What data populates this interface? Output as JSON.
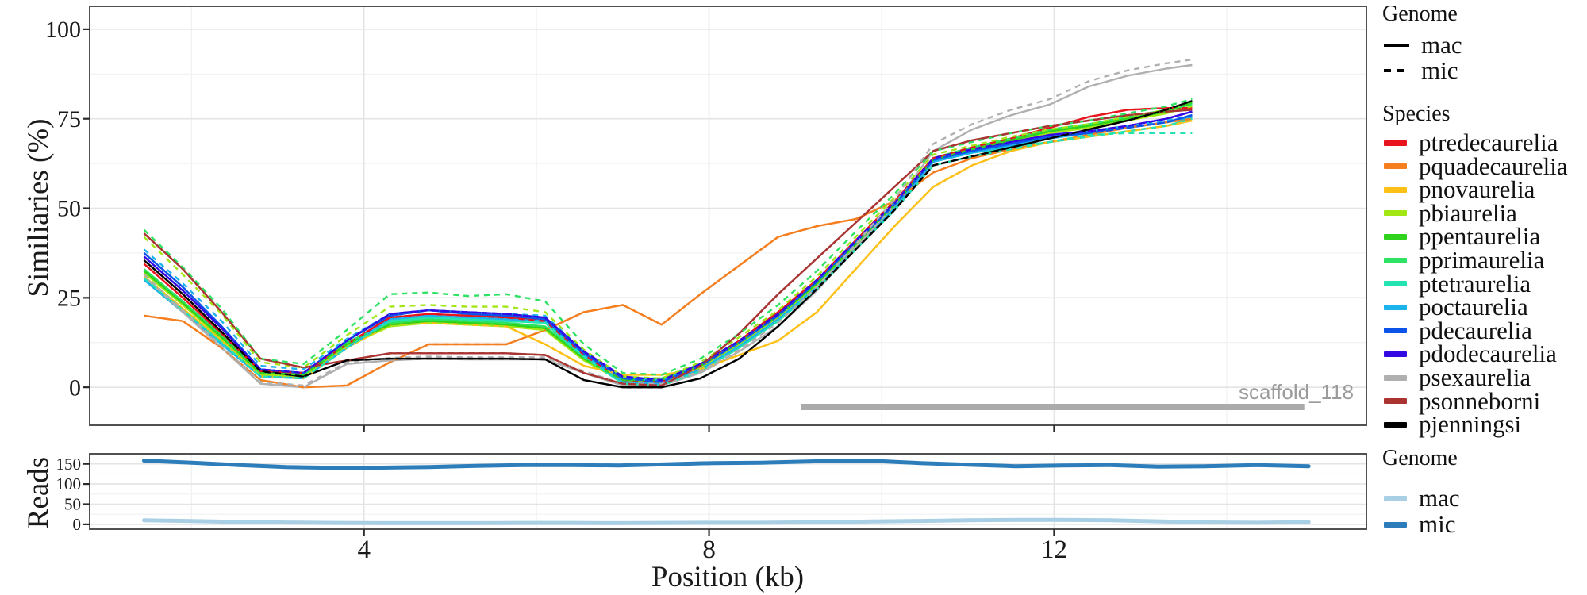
{
  "axes": {
    "similarity_title": "Similiaries (%)",
    "reads_title": "Reads",
    "x_title": "Position (kb)"
  },
  "annotation": {
    "label": "scaffold_118",
    "x_start": 9.07,
    "x_end": 14.9,
    "bar_color": "#ababab",
    "label_color": "#9b9b9b"
  },
  "legends": {
    "genome_top": {
      "title": "Genome",
      "items": [
        {
          "label": "mac",
          "line": "solid"
        },
        {
          "label": "mic",
          "line": "dashed"
        }
      ]
    },
    "species": {
      "title": "Species",
      "items": [
        {
          "label": "ptredecaurelia",
          "color": "#e8141e"
        },
        {
          "label": "pquadecaurelia",
          "color": "#f57e1f"
        },
        {
          "label": "pnovaurelia",
          "color": "#fdc016"
        },
        {
          "label": "pbiaurelia",
          "color": "#a2e714"
        },
        {
          "label": "ppentaurelia",
          "color": "#2fd31d"
        },
        {
          "label": "pprimaurelia",
          "color": "#2ee264"
        },
        {
          "label": "ptetraurelia",
          "color": "#24e3b2"
        },
        {
          "label": "poctaurelia",
          "color": "#1bb3eb"
        },
        {
          "label": "pdecaurelia",
          "color": "#0c53e9"
        },
        {
          "label": "pdodecaurelia",
          "color": "#3408e3"
        },
        {
          "label": "psexaurelia",
          "color": "#b0b0b0"
        },
        {
          "label": "psonneborni",
          "color": "#a93432"
        },
        {
          "label": "pjenningsi",
          "color": "#000000"
        }
      ]
    },
    "genome_bottom": {
      "title": "Genome",
      "items": [
        {
          "label": "mac",
          "color": "#a9cfe4"
        },
        {
          "label": "mic",
          "color": "#2d7dbb"
        }
      ]
    }
  },
  "chart_data": [
    {
      "type": "line",
      "title": "",
      "xlabel": "Position (kb)",
      "ylabel": "Similiaries (%)",
      "xlim": [
        0.82,
        15.62
      ],
      "ylim": [
        -10.6,
        106.4
      ],
      "grid": "on",
      "legend_position": "right",
      "xticks": [
        {
          "v": 4,
          "label": "4"
        },
        {
          "v": 8,
          "label": "8"
        },
        {
          "v": 12,
          "label": "12"
        }
      ],
      "xminor": [
        2,
        6,
        10,
        14
      ],
      "yticks": [
        {
          "v": 0,
          "label": "0"
        },
        {
          "v": 25,
          "label": "25"
        },
        {
          "v": 50,
          "label": "50"
        },
        {
          "v": 75,
          "label": "75"
        },
        {
          "v": 100,
          "label": "100"
        }
      ],
      "yminor": [
        12.5,
        37.5,
        62.5,
        87.5
      ],
      "x": [
        1.45,
        1.9,
        2.35,
        2.8,
        3.3,
        3.8,
        4.3,
        4.75,
        5.2,
        5.65,
        6.1,
        6.55,
        7.0,
        7.45,
        7.9,
        8.35,
        8.8,
        9.25,
        9.7,
        10.15,
        10.6,
        11.05,
        11.5,
        11.95,
        12.4,
        12.85,
        13.3,
        13.6
      ],
      "series": [
        {
          "species": "ptredecaurelia",
          "color": "#e8141e",
          "mac": [
            34.5,
            25,
            15,
            4.5,
            4,
            12,
            19.5,
            20.5,
            20,
            19.5,
            18.5,
            9,
            2,
            1.5,
            6,
            13,
            21,
            30,
            41,
            52,
            64,
            67,
            69.5,
            72.5,
            75.5,
            77.5,
            78,
            78
          ],
          "mic": [
            34.5,
            25,
            15,
            4.5,
            4,
            12,
            19.5,
            20.5,
            20,
            19.5,
            18.5,
            9,
            2,
            1.5,
            6,
            13,
            21,
            30,
            41,
            52,
            64,
            67,
            69.5,
            72.5,
            75.5,
            77.5,
            78,
            78
          ]
        },
        {
          "species": "pquadecaurelia",
          "color": "#f57e1f",
          "mac": [
            20,
            18.5,
            11,
            2,
            0,
            0.5,
            7,
            12,
            12,
            12,
            16,
            21,
            23,
            17.5,
            26,
            34,
            42,
            45,
            47,
            52,
            60,
            64,
            66.5,
            68.5,
            70.5,
            72.5,
            74,
            75
          ],
          "mic": [
            20,
            18.5,
            11,
            2,
            0,
            0.5,
            7,
            12,
            12,
            12,
            16,
            21,
            23,
            17.5,
            26,
            34,
            42,
            45,
            47,
            52,
            60,
            64,
            66.5,
            68.5,
            70.5,
            72.5,
            74,
            75
          ]
        },
        {
          "species": "pnovaurelia",
          "color": "#fdc016",
          "mac": [
            31,
            22,
            13,
            3,
            2.5,
            11,
            17.5,
            18,
            17.5,
            17,
            12,
            6,
            3.5,
            3.5,
            5,
            9,
            13,
            21,
            33,
            45,
            56,
            62,
            66,
            68.5,
            70,
            71.5,
            73,
            74.5
          ],
          "mic": [
            31,
            22,
            13,
            3,
            2.5,
            11,
            17.5,
            18,
            17.5,
            17,
            12,
            6,
            3.5,
            3.5,
            5,
            9,
            13,
            21,
            33,
            45,
            56,
            62,
            66,
            68.5,
            70,
            71.5,
            73,
            74.5
          ]
        },
        {
          "species": "pbiaurelia",
          "color": "#a2e714",
          "mac": [
            32,
            23,
            13.5,
            3.5,
            3,
            11.5,
            17,
            18,
            17.5,
            17,
            16,
            7.5,
            1.5,
            1.5,
            5.5,
            12,
            19.5,
            28.5,
            39.5,
            50.5,
            63,
            66,
            68.5,
            71,
            72.5,
            74.5,
            76.5,
            78.5
          ],
          "mic": [
            42,
            31.5,
            20.5,
            7,
            5.5,
            14.5,
            22.5,
            23,
            22.5,
            22.5,
            21,
            10.5,
            3,
            2.5,
            7,
            14,
            21.5,
            31,
            42,
            53,
            65,
            67.5,
            70,
            72,
            73.5,
            75.5,
            77.5,
            79.5
          ]
        },
        {
          "species": "ppentaurelia",
          "color": "#2fd31d",
          "mac": [
            32.5,
            23.5,
            14,
            4,
            3.5,
            12,
            17.5,
            18.5,
            18,
            17.5,
            16.5,
            8,
            2,
            2,
            6,
            12.5,
            20,
            29,
            40,
            51,
            63.5,
            66.5,
            69,
            71.5,
            73,
            75,
            77,
            79.5
          ],
          "mic": [
            32.5,
            23.5,
            14,
            4,
            3.5,
            12,
            17.5,
            18.5,
            18,
            17.5,
            16.5,
            8,
            2,
            2,
            6,
            12.5,
            20,
            29,
            40,
            51,
            63.5,
            66.5,
            69,
            71.5,
            73,
            75,
            77,
            79.5
          ]
        },
        {
          "species": "pprimaurelia",
          "color": "#2ee264",
          "mac": [
            33,
            24,
            14.5,
            4,
            3.5,
            12.5,
            18,
            19,
            18.5,
            18,
            17,
            8.5,
            2.5,
            2.5,
            6.5,
            13,
            20.5,
            29.5,
            40.5,
            51.5,
            64,
            67,
            69.5,
            72,
            73.5,
            75.5,
            77.5,
            79
          ],
          "mic": [
            44,
            33.5,
            22,
            8,
            6.5,
            16,
            26,
            26.5,
            25.5,
            26,
            24,
            12,
            4,
            3.5,
            8,
            15,
            23,
            32.5,
            43.5,
            54,
            66,
            68.5,
            71,
            73,
            74.5,
            76.5,
            78.5,
            80.5
          ]
        },
        {
          "species": "ptetraurelia",
          "color": "#24e3b2",
          "mac": [
            30.5,
            21.5,
            12.5,
            3,
            2.5,
            11,
            18.5,
            19.5,
            19,
            18.5,
            18,
            8.5,
            1,
            0.5,
            4.5,
            11,
            18.5,
            27.5,
            38.5,
            49.5,
            63.5,
            65.5,
            67,
            68.5,
            70,
            71.5,
            73,
            75
          ],
          "mic": [
            30.5,
            21.5,
            12.5,
            3,
            2.5,
            11,
            18.5,
            19.5,
            19,
            18.5,
            18,
            8.5,
            1,
            0.5,
            4.5,
            11,
            18.5,
            27.5,
            38.5,
            49.5,
            62,
            64.5,
            66.5,
            68.5,
            70.5,
            71,
            71,
            71
          ]
        },
        {
          "species": "poctaurelia",
          "color": "#1bb3eb",
          "mac": [
            30,
            21,
            12,
            3,
            2.5,
            11,
            19,
            20,
            19.5,
            19,
            18.5,
            9,
            1.5,
            1,
            5,
            11.5,
            19,
            28,
            39,
            50,
            63,
            65.5,
            67.5,
            69.5,
            71,
            72.5,
            74,
            75.5
          ],
          "mic": [
            38.5,
            29,
            18.5,
            6,
            5,
            13.5,
            20.5,
            21.5,
            21,
            20.5,
            20,
            10,
            2.5,
            2,
            6,
            12.5,
            20,
            29.5,
            40.5,
            51.5,
            63.5,
            66,
            68,
            70,
            71.5,
            73,
            74.5,
            76
          ]
        },
        {
          "species": "pdecaurelia",
          "color": "#0c53e9",
          "mac": [
            37.5,
            28,
            17,
            5,
            4,
            13,
            20,
            21.5,
            20.5,
            20,
            19,
            9.5,
            2.5,
            1.5,
            6,
            12.5,
            20,
            29.5,
            40.5,
            51,
            63.5,
            66,
            68,
            70,
            71,
            72.5,
            74,
            76
          ],
          "mic": [
            37.5,
            28,
            17,
            5,
            4,
            13,
            20,
            21.5,
            20.5,
            20,
            19,
            9.5,
            2.5,
            1.5,
            6,
            12.5,
            20,
            29.5,
            40.5,
            51,
            63.5,
            66,
            68,
            70,
            71,
            72.5,
            74,
            76
          ]
        },
        {
          "species": "pdodecaurelia",
          "color": "#3408e3",
          "mac": [
            36.5,
            27,
            16.5,
            5,
            4,
            13,
            20.5,
            21.5,
            21,
            20.5,
            19.5,
            10,
            3,
            2,
            6.5,
            13,
            20.5,
            30,
            41,
            51.5,
            64,
            66.5,
            68.5,
            70.5,
            71.5,
            73,
            75,
            77
          ],
          "mic": [
            36.5,
            27,
            16.5,
            5,
            4,
            13,
            20.5,
            21.5,
            21,
            20.5,
            19.5,
            10,
            3,
            2,
            6.5,
            13,
            20.5,
            30,
            41,
            51.5,
            64,
            66.5,
            68.5,
            70.5,
            71.5,
            73,
            75,
            77
          ]
        },
        {
          "species": "psexaurelia",
          "color": "#b0b0b0",
          "mac": [
            31,
            21,
            11,
            1,
            0,
            6.5,
            7.5,
            8,
            7.8,
            7.8,
            7.8,
            4,
            0.5,
            0.5,
            4,
            10,
            17,
            27,
            39,
            51,
            66,
            72,
            76,
            79,
            84,
            87,
            89,
            90
          ],
          "mic": [
            31.5,
            21.5,
            11.5,
            1.5,
            0.5,
            7,
            8.2,
            8.6,
            8.4,
            8.4,
            8.4,
            4.5,
            1,
            1,
            4.5,
            10.5,
            18,
            28,
            40,
            52.5,
            68,
            73.5,
            77.5,
            80.5,
            85.5,
            88.5,
            90.5,
            91.5
          ]
        },
        {
          "species": "psonneborni",
          "color": "#a93432",
          "mac": [
            43,
            33,
            21,
            8,
            5.5,
            7.5,
            9.5,
            9.5,
            9.5,
            9.5,
            9,
            4,
            1,
            0.5,
            6,
            15,
            26,
            36,
            46,
            56,
            66,
            69,
            71,
            73,
            74.5,
            76,
            77,
            77.5
          ],
          "mic": [
            43,
            33,
            21,
            8,
            5.5,
            7.5,
            9.5,
            9.5,
            9.5,
            9.5,
            9,
            4,
            1,
            0.5,
            6,
            15,
            26,
            36,
            46,
            56,
            66,
            69,
            71,
            73,
            74.5,
            76,
            77,
            77.5
          ]
        },
        {
          "species": "pjenningsi",
          "color": "#000000",
          "mac": [
            35.5,
            26,
            15.5,
            4.5,
            3,
            7.5,
            8,
            8,
            8,
            8,
            7.8,
            2,
            0,
            0,
            2.5,
            8,
            17,
            27.5,
            38.5,
            49.5,
            62,
            64.5,
            67,
            69.5,
            72,
            74.5,
            77.5,
            80
          ],
          "mic": [
            35.5,
            26,
            15.5,
            4.5,
            3,
            7.5,
            8,
            8,
            8,
            8,
            7.8,
            2,
            0,
            0,
            2.5,
            8,
            17,
            27.5,
            38.5,
            49.5,
            62,
            64.5,
            67,
            69.5,
            72,
            74.5,
            77.5,
            80
          ]
        }
      ]
    },
    {
      "type": "line",
      "title": "",
      "xlabel": "Position (kb)",
      "ylabel": "Reads",
      "xlim": [
        0.82,
        15.62
      ],
      "ylim": [
        -12,
        175
      ],
      "grid": "on",
      "legend_position": "right",
      "yticks": [
        {
          "v": 0,
          "label": "0"
        },
        {
          "v": 50,
          "label": "50"
        },
        {
          "v": 100,
          "label": "100"
        },
        {
          "v": 150,
          "label": "150"
        }
      ],
      "yminor": [
        25,
        75,
        125
      ],
      "x": [
        1.45,
        2.0,
        2.55,
        3.1,
        3.65,
        4.2,
        4.75,
        5.3,
        5.85,
        6.4,
        6.95,
        7.5,
        8.05,
        8.6,
        9.15,
        9.5,
        9.9,
        10.45,
        11.0,
        11.55,
        12.1,
        12.65,
        13.2,
        13.75,
        14.35,
        14.95
      ],
      "series": [
        {
          "name": "mac",
          "color": "#a9cfe4",
          "values": [
            10,
            8,
            6,
            4.5,
            3.5,
            3,
            3,
            3,
            3.5,
            3.5,
            3,
            3.5,
            4,
            4,
            5,
            6,
            7,
            8.5,
            10,
            11,
            11,
            10,
            7.5,
            5,
            4,
            5.5
          ]
        },
        {
          "name": "mic",
          "color": "#2d7dbb",
          "values": [
            158,
            153,
            147,
            142,
            140,
            140.5,
            142,
            145,
            147,
            147,
            146,
            149,
            152,
            153,
            156,
            158,
            157.5,
            152,
            148,
            144,
            146,
            147,
            143,
            144,
            147,
            144
          ]
        }
      ]
    }
  ]
}
